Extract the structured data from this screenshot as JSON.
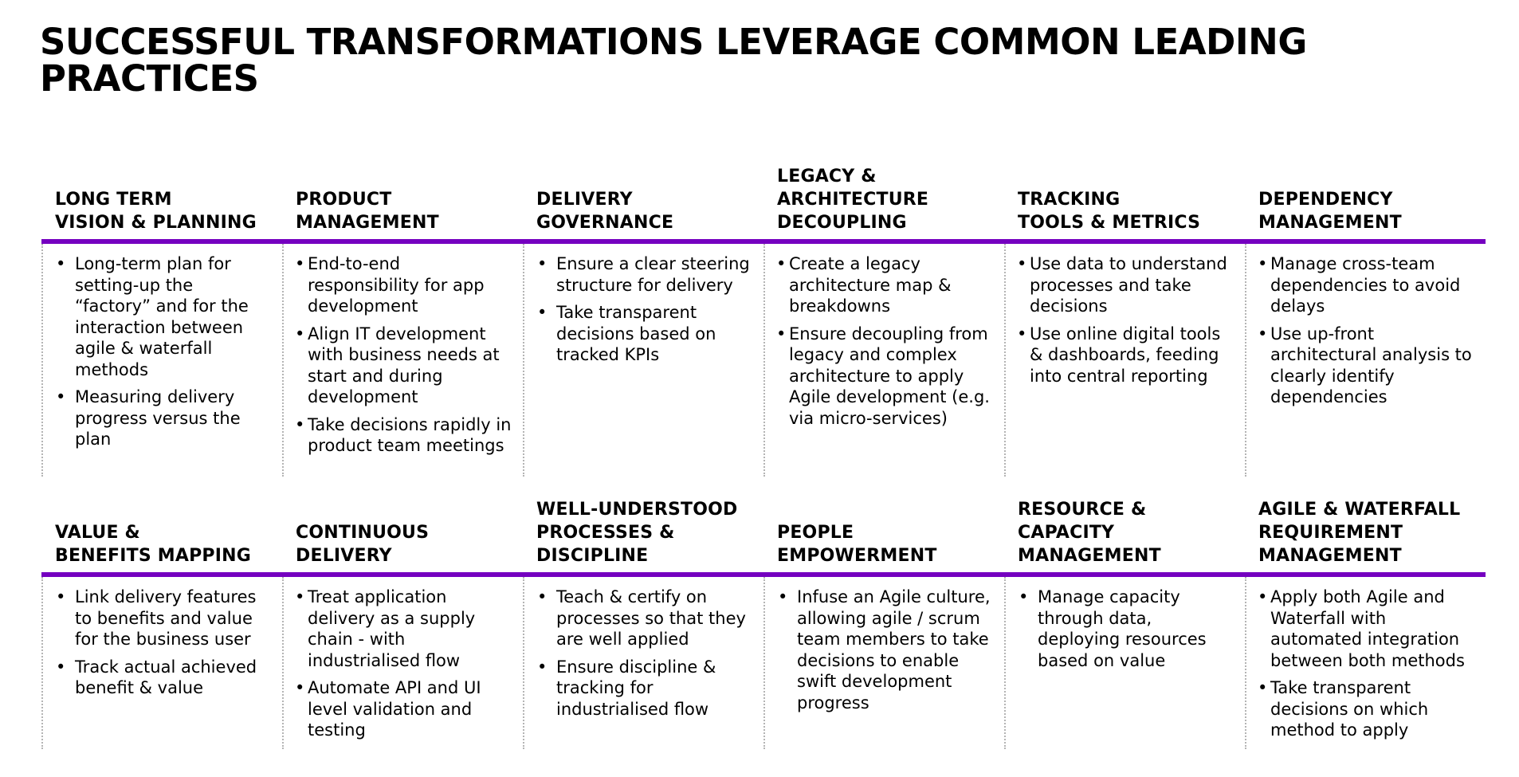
{
  "title": "SUCCESSFUL TRANSFORMATIONS LEVERAGE COMMON LEADING PRACTICES",
  "accent_color": "#7500c0",
  "bullet_glyph": "•",
  "rows": [
    {
      "pillars": [
        {
          "heading": "LONG TERM\nVISION & PLANNING",
          "bullets": [
            "Long-term plan for setting-up the “factory” and for the interaction between agile & waterfall methods",
            "Measuring delivery progress versus the plan"
          ]
        },
        {
          "heading": "PRODUCT\nMANAGEMENT",
          "bullets": [
            "End-to-end responsibility for app development",
            "Align IT development with business needs at start and during development",
            "Take decisions rapidly in  product team meetings"
          ]
        },
        {
          "heading": "DELIVERY\nGOVERNANCE",
          "bullets": [
            "Ensure a clear steering structure for delivery",
            "Take transparent decisions based on tracked KPIs"
          ]
        },
        {
          "heading": "LEGACY &\nARCHITECTURE\nDECOUPLING",
          "bullets": [
            "Create a legacy architecture map & breakdowns",
            "Ensure decoupling from legacy and complex architecture to apply Agile development (e.g. via micro-services)"
          ]
        },
        {
          "heading": "TRACKING\nTOOLS & METRICS",
          "bullets": [
            "Use data to understand processes and take decisions",
            "Use online digital tools & dashboards, feeding into central reporting"
          ]
        },
        {
          "heading": "DEPENDENCY\nMANAGEMENT",
          "bullets": [
            "Manage cross-team dependencies to avoid delays",
            "Use up-front architectural analysis to clearly identify dependencies"
          ]
        }
      ]
    },
    {
      "pillars": [
        {
          "heading": "VALUE &\nBENEFITS MAPPING",
          "bullets": [
            "Link delivery features to benefits and value for the business user",
            "Track actual achieved benefit & value"
          ]
        },
        {
          "heading": "CONTINUOUS\nDELIVERY",
          "bullets": [
            "Treat application delivery as a supply chain - with industrialised flow",
            "Automate API and UI level validation and testing"
          ]
        },
        {
          "heading": "WELL-UNDERSTOOD\nPROCESSES &\nDISCIPLINE",
          "bullets": [
            "Teach & certify on processes so that they are well applied",
            "Ensure discipline & tracking for industrialised flow"
          ]
        },
        {
          "heading": "PEOPLE\nEMPOWERMENT",
          "bullets": [
            "Infuse an Agile culture, allowing agile / scrum team members to take decisions to enable swift development progress"
          ]
        },
        {
          "heading": "RESOURCE &\nCAPACITY\nMANAGEMENT",
          "bullets": [
            "Manage capacity through data, deploying resources based on value"
          ]
        },
        {
          "heading": "AGILE & WATERFALL\nREQUIREMENT\nMANAGEMENT",
          "bullets": [
            "Apply both Agile and Waterfall with automated integration between both methods",
            "Take transparent decisions on which method to apply"
          ]
        }
      ]
    }
  ]
}
